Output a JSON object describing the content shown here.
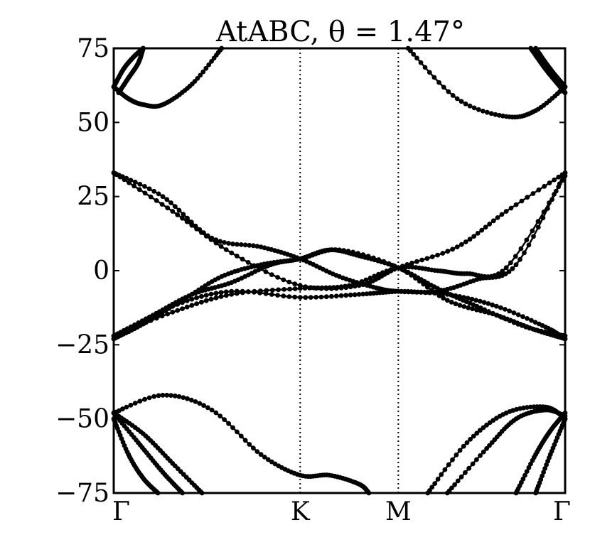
{
  "chart_data": {
    "type": "line",
    "title": "AtABC, θ = 1.47°",
    "xlabel": "",
    "ylabel": "",
    "xlim": [
      0,
      4.6
    ],
    "ylim": [
      -75,
      75
    ],
    "yticks": [
      75,
      50,
      25,
      0,
      -25,
      -50,
      -75
    ],
    "ytick_labels": [
      "75",
      "50",
      "25",
      "0",
      "−25",
      "−50",
      "−75"
    ],
    "xticks": [
      0,
      1.9,
      2.9,
      4.6
    ],
    "xtick_labels": [
      "Γ",
      "K",
      "M",
      "Γ"
    ],
    "vlines": [
      0,
      1.9,
      2.9
    ],
    "grid": false,
    "colors": {
      "bands": "#000000",
      "frame": "#000000"
    },
    "series": [
      {
        "x": [
          0,
          0.3,
          0.7,
          1.1,
          1.5,
          1.9,
          2.3,
          2.9,
          3.4,
          3.9,
          4.3,
          4.6
        ],
        "values": [
          -23,
          -18,
          -10,
          -2,
          2,
          4,
          7,
          1,
          -10,
          -15,
          -20,
          -23
        ]
      },
      {
        "x": [
          0,
          0.4,
          0.8,
          1.2,
          1.6,
          1.9,
          2.2,
          2.5,
          2.9,
          3.3,
          3.7,
          4.2,
          4.6
        ],
        "values": [
          -22,
          -15,
          -8,
          -4,
          2,
          4,
          7,
          5,
          1,
          -6,
          -12,
          -19,
          -22
        ]
      },
      {
        "x": [
          0,
          0.5,
          1.0,
          1.5,
          1.9,
          2.3,
          2.7,
          2.9,
          3.4,
          3.9,
          4.4,
          4.6
        ],
        "values": [
          33,
          25,
          11,
          8,
          4,
          -2,
          -6,
          -7,
          -8,
          -12,
          -19,
          -23
        ]
      },
      {
        "x": [
          0,
          0.6,
          1.2,
          1.9,
          2.5,
          2.9,
          3.5,
          4.0,
          4.6
        ],
        "values": [
          33,
          20,
          6,
          -5,
          -5,
          1,
          8,
          20,
          33
        ]
      },
      {
        "x": [
          0,
          0.6,
          1.2,
          1.9,
          2.5,
          2.9,
          3.3,
          3.7,
          4.1,
          4.6
        ],
        "values": [
          -23,
          -12,
          -7,
          -9,
          -8,
          -7,
          -7,
          -3,
          2,
          33
        ]
      },
      {
        "x": [
          0,
          0.6,
          1.2,
          1.9,
          2.4,
          2.9,
          3.3,
          3.6,
          4.0,
          4.6
        ],
        "values": [
          -22,
          -14,
          -8,
          -6,
          -5,
          1,
          0,
          -1,
          1,
          32
        ]
      },
      {
        "x": [
          0,
          0.5,
          1.0,
          1.5,
          1.9,
          2.2,
          2.5,
          2.6
        ],
        "values": [
          -48,
          -42,
          -47,
          -62,
          -69,
          -69,
          -72,
          -75
        ]
      },
      {
        "x": [
          0,
          0.3,
          0.6,
          0.9
        ],
        "values": [
          -48,
          -55,
          -65,
          -75
        ]
      },
      {
        "x": [
          0,
          0.25,
          0.5,
          0.7
        ],
        "values": [
          -48,
          -58,
          -68,
          -75
        ]
      },
      {
        "x": [
          0,
          0.15,
          0.3,
          0.45
        ],
        "values": [
          -50,
          -62,
          -70,
          -75
        ]
      },
      {
        "x": [
          3.2,
          3.6,
          4.0,
          4.4,
          4.6
        ],
        "values": [
          -75,
          -58,
          -48,
          -46,
          -50
        ]
      },
      {
        "x": [
          3.4,
          3.8,
          4.1,
          4.4,
          4.6
        ],
        "values": [
          -75,
          -60,
          -50,
          -47,
          -49
        ]
      },
      {
        "x": [
          4.1,
          4.3,
          4.45,
          4.6
        ],
        "values": [
          -75,
          -62,
          -54,
          -48
        ]
      },
      {
        "x": [
          4.3,
          4.45,
          4.6
        ],
        "values": [
          -75,
          -62,
          -50
        ]
      },
      {
        "x": [
          0,
          0.15,
          0.3,
          0.5,
          0.8,
          1.1
        ],
        "values": [
          62,
          58,
          56,
          56,
          63,
          75
        ]
      },
      {
        "x": [
          0,
          0.1,
          0.2,
          0.3
        ],
        "values": [
          62,
          68,
          72,
          75
        ]
      },
      {
        "x": [
          0.05,
          0.15,
          0.25,
          0.3
        ],
        "values": [
          60,
          65,
          70,
          75
        ]
      },
      {
        "x": [
          3.0,
          3.5,
          4.0,
          4.3,
          4.6
        ],
        "values": [
          75,
          58,
          52,
          54,
          62
        ]
      },
      {
        "x": [
          4.3,
          4.45,
          4.6
        ],
        "values": [
          75,
          68,
          62
        ]
      },
      {
        "x": [
          4.25,
          4.4,
          4.55,
          4.6
        ],
        "values": [
          75,
          68,
          62,
          60
        ]
      }
    ]
  }
}
